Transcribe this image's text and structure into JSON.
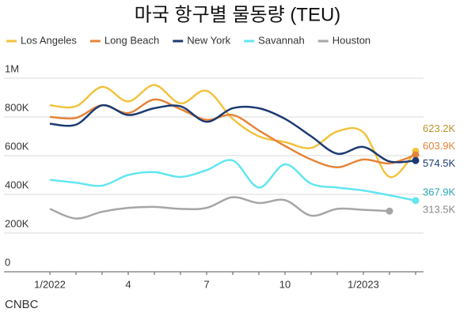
{
  "chart_data": {
    "type": "line",
    "title": "마국 항구별  물동량 (TEU)",
    "source": "CNBC",
    "categories": [
      "1/2022",
      null,
      null,
      "4",
      null,
      null,
      "7",
      null,
      null,
      "10",
      null,
      null,
      "1/2023",
      null,
      null
    ],
    "series": [
      {
        "name": "Los Angeles",
        "color": "#f2c33e",
        "values": [
          860000,
          855000,
          955000,
          880000,
          965000,
          870000,
          935000,
          790000,
          700000,
          670000,
          640000,
          725000,
          720000,
          490000,
          623200
        ],
        "value_labels": [
          null,
          null,
          null,
          null,
          null,
          null,
          null,
          null,
          null,
          null,
          null,
          null,
          null,
          null,
          "623.2K"
        ]
      },
      {
        "name": "Long Beach",
        "color": "#e6843a",
        "values": [
          800000,
          795000,
          860000,
          820000,
          890000,
          840000,
          785000,
          810000,
          730000,
          650000,
          580000,
          540000,
          580000,
          560000,
          603900
        ],
        "value_labels": [
          null,
          null,
          null,
          null,
          null,
          null,
          null,
          null,
          null,
          null,
          null,
          null,
          null,
          null,
          "603.9K"
        ]
      },
      {
        "name": "New York",
        "color": "#1d3a72",
        "values": [
          765000,
          760000,
          860000,
          810000,
          845000,
          855000,
          775000,
          845000,
          845000,
          790000,
          700000,
          610000,
          645000,
          570000,
          574500
        ],
        "value_labels": [
          null,
          null,
          null,
          null,
          null,
          null,
          null,
          null,
          null,
          null,
          null,
          null,
          null,
          null,
          "574.5K"
        ]
      },
      {
        "name": "Savannah",
        "color": "#62e6f0",
        "values": [
          475000,
          460000,
          445000,
          500000,
          515000,
          490000,
          525000,
          575000,
          435000,
          555000,
          455000,
          435000,
          420000,
          395000,
          367900
        ],
        "value_labels": [
          null,
          null,
          null,
          null,
          null,
          null,
          null,
          null,
          null,
          null,
          null,
          null,
          null,
          null,
          "367.9K"
        ]
      },
      {
        "name": "Houston",
        "color": "#a6a6a6",
        "values": [
          325000,
          275000,
          310000,
          330000,
          335000,
          325000,
          330000,
          385000,
          355000,
          370000,
          290000,
          325000,
          320000,
          313500,
          null
        ],
        "value_labels": [
          null,
          null,
          null,
          null,
          null,
          null,
          null,
          null,
          null,
          null,
          null,
          null,
          null,
          "313.5K",
          null
        ]
      }
    ],
    "ylim": [
      0,
      1000000
    ],
    "yticks": [
      0,
      {
        "value": 200000,
        "label": "200K"
      },
      {
        "value": 400000,
        "label": "400K"
      },
      {
        "value": 600000,
        "label": "600K"
      },
      {
        "value": 800000,
        "label": "800K"
      },
      {
        "value": 1000000,
        "label": "1M"
      }
    ],
    "grid": true
  }
}
